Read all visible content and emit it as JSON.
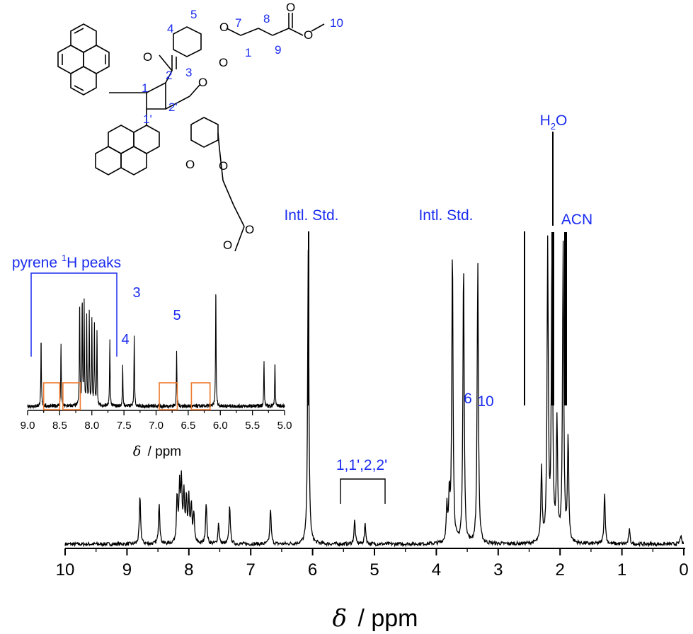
{
  "chart_data": [
    {
      "type": "line",
      "title": "",
      "xlabel_symbol": "δ",
      "xlabel_unit": "/ ppm",
      "xlim": [
        10,
        0
      ],
      "x_reversed": true,
      "xticks": [
        "10",
        "9",
        "8",
        "7",
        "6",
        "5",
        "4",
        "3",
        "2",
        "1",
        "0"
      ],
      "grid": false,
      "series": [
        {
          "peaks_ppm": [
            8.79,
            8.48,
            8.19,
            8.15,
            8.12,
            8.08,
            8.04,
            8.0,
            7.96,
            7.92,
            7.72,
            7.52,
            7.34,
            6.68,
            6.07,
            5.32,
            5.15,
            3.83,
            3.79,
            3.74,
            3.56,
            3.33,
            2.3,
            2.2,
            2.13,
            2.05,
            1.95,
            1.87,
            1.28,
            0.88,
            0.05
          ],
          "heights_rel": [
            0.16,
            0.14,
            0.16,
            0.18,
            0.2,
            0.16,
            0.14,
            0.15,
            0.12,
            0.1,
            0.14,
            0.07,
            0.13,
            0.12,
            1.0,
            0.08,
            0.07,
            0.12,
            0.15,
            1.0,
            0.95,
            0.95,
            0.25,
            1.0,
            1.0,
            0.4,
            1.0,
            0.35,
            0.17,
            0.05,
            0.03
          ]
        }
      ],
      "annotations": [
        {
          "text": "Intl. Std.",
          "x": 6.07
        },
        {
          "text": "Intl. Std.",
          "x": 3.74
        },
        {
          "text": "6",
          "x": 3.56
        },
        {
          "text": "10",
          "x": 3.33
        },
        {
          "text": "H2O",
          "x": 2.15
        },
        {
          "text": "ACN",
          "x": 1.95
        },
        {
          "text": "1,1',2,2'",
          "x_range": [
            5.6,
            4.87
          ]
        }
      ]
    },
    {
      "type": "line",
      "inset": true,
      "xlabel_symbol": "δ",
      "xlabel_unit": "/ ppm",
      "xlim": [
        9.0,
        5.0
      ],
      "xticks": [
        "9.0",
        "8.5",
        "8.0",
        "7.5",
        "7.0",
        "6.5",
        "6.0",
        "5.5",
        "5.0"
      ],
      "series": [
        {
          "peaks_ppm": [
            8.79,
            8.48,
            8.19,
            8.15,
            8.12,
            8.08,
            8.04,
            8.0,
            7.96,
            7.92,
            7.72,
            7.52,
            7.34,
            6.68,
            6.07,
            5.32,
            5.15
          ],
          "heights_rel": [
            0.55,
            0.52,
            0.87,
            0.88,
            0.85,
            0.72,
            0.76,
            0.72,
            0.68,
            0.62,
            0.55,
            0.33,
            0.6,
            0.45,
            1.0,
            0.38,
            0.37
          ]
        }
      ],
      "annotations": [
        {
          "text": "pyrene 1H peaks",
          "x_range": [
            8.9,
            7.65
          ]
        },
        {
          "text": "3",
          "x": 7.34
        },
        {
          "text": "4",
          "x": 7.52
        },
        {
          "text": "5",
          "x": 6.68
        }
      ],
      "highlight_boxes_ppm": [
        [
          8.75,
          8.5
        ],
        [
          8.45,
          8.18
        ],
        [
          6.95,
          6.67
        ],
        [
          6.45,
          6.16
        ]
      ]
    }
  ],
  "structure_labels": {
    "n1": "1",
    "n1p": "1'",
    "n2": "2",
    "n2p": "2'",
    "n3": "3",
    "n4": "4",
    "n5": "5",
    "n7": "7",
    "n8": "8",
    "n9": "9",
    "n10": "10",
    "n1b": "1",
    "o1": "O",
    "o2": "O",
    "o3": "O",
    "o4": "O",
    "o5": "O",
    "o6": "O",
    "o7": "O",
    "o8": "O",
    "o9": "O",
    "o10": "O"
  },
  "colors": {
    "annotation": "#1a2cf0",
    "spectrum": "#000000",
    "highlight_box": "#ee7a2f"
  },
  "h2o": {
    "main": "H",
    "sub": "2",
    "tail": "O"
  },
  "pyrene_label": {
    "pre": "pyrene ",
    "sup": "1",
    "post": "H peaks"
  }
}
